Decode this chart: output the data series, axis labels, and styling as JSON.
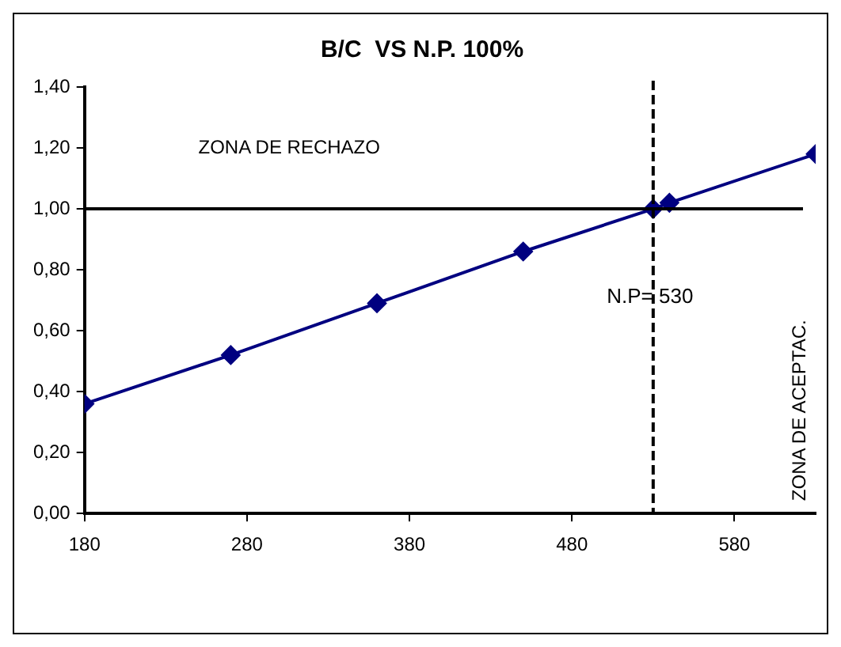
{
  "chart_data": {
    "type": "line",
    "title": "B/C  VS N.P. 100%",
    "x": [
      180,
      270,
      360,
      450,
      530,
      540,
      630
    ],
    "series": [
      {
        "color": "#000080",
        "values": [
          0.36,
          0.52,
          0.69,
          0.86,
          1.0,
          1.02,
          1.18
        ]
      }
    ],
    "xlim": [
      180,
      630
    ],
    "xticks": [
      180,
      280,
      380,
      480,
      580
    ],
    "ylim": [
      0,
      1.4
    ],
    "yticks": [
      {
        "value": 0,
        "label": "0,00"
      },
      {
        "value": 0.2,
        "label": "0,20"
      },
      {
        "value": 0.4,
        "label": "0,40"
      },
      {
        "value": 0.6,
        "label": "0,60"
      },
      {
        "value": 0.8,
        "label": "0,80"
      },
      {
        "value": 1,
        "label": "1,00"
      },
      {
        "value": 1.2,
        "label": "1,20"
      },
      {
        "value": 1.4,
        "label": "1,40"
      }
    ],
    "ref_lines": [
      {
        "axis": "y",
        "value": 1,
        "color": "#000000",
        "line_style": "solid"
      },
      {
        "axis": "x",
        "value": 530,
        "label": "N.P= 530",
        "color": "#000000",
        "line_style": "dashed"
      }
    ],
    "annotations": [
      "ZONA DE RECHAZO",
      "ZONA DE ACEPTAC."
    ],
    "grid": false,
    "legend": false,
    "marker": "diamond",
    "line_style": "solid"
  }
}
